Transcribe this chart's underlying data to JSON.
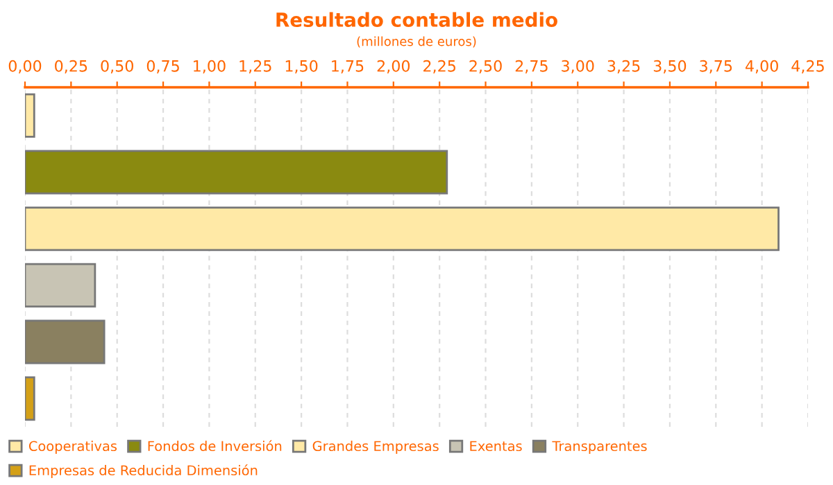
{
  "chart_data": {
    "type": "bar",
    "orientation": "horizontal",
    "title": "Resultado contable medio",
    "subtitle": "(millones de euros)",
    "categories": [
      null,
      null,
      null,
      null,
      null,
      null
    ],
    "series": [
      {
        "name": "Cooperativas",
        "color": "#ffe9a6",
        "values": [
          0.05,
          null,
          null,
          null,
          null,
          null
        ]
      },
      {
        "name": "Fondos de Inversión",
        "color": "#8a8a10",
        "values": [
          null,
          2.29,
          null,
          null,
          null,
          null
        ]
      },
      {
        "name": "Grandes Empresas",
        "color": "#ffe9a6",
        "values": [
          null,
          null,
          4.09,
          null,
          null,
          null
        ]
      },
      {
        "name": "Exentas",
        "color": "#c8c4b4",
        "values": [
          null,
          null,
          null,
          0.38,
          null,
          null
        ]
      },
      {
        "name": "Transparentes",
        "color": "#8a8060",
        "values": [
          null,
          null,
          null,
          null,
          0.43,
          null
        ]
      },
      {
        "name": "Empresas de Reducida Dimensión",
        "color": "#d4a017",
        "values": [
          null,
          null,
          null,
          null,
          null,
          0.05
        ]
      }
    ],
    "xlim": [
      0,
      4.25
    ],
    "xticks": [
      {
        "value": 0,
        "label": "0,00"
      },
      {
        "value": 0.25,
        "label": "0,25"
      },
      {
        "value": 0.5,
        "label": "0,50"
      },
      {
        "value": 0.75,
        "label": "0,75"
      },
      {
        "value": 1,
        "label": "1,00"
      },
      {
        "value": 1.25,
        "label": "1,25"
      },
      {
        "value": 1.5,
        "label": "1,50"
      },
      {
        "value": 1.75,
        "label": "1,75"
      },
      {
        "value": 2,
        "label": "2,00"
      },
      {
        "value": 2.25,
        "label": "2,25"
      },
      {
        "value": 2.5,
        "label": "2,50"
      },
      {
        "value": 2.75,
        "label": "2,75"
      },
      {
        "value": 3,
        "label": "3,00"
      },
      {
        "value": 3.25,
        "label": "3,25"
      },
      {
        "value": 3.5,
        "label": "3,50"
      },
      {
        "value": 3.75,
        "label": "3,75"
      },
      {
        "value": 4,
        "label": "4,00"
      },
      {
        "value": 4.25,
        "label": "4,25"
      }
    ],
    "grid": "x",
    "legend": "bottom"
  }
}
